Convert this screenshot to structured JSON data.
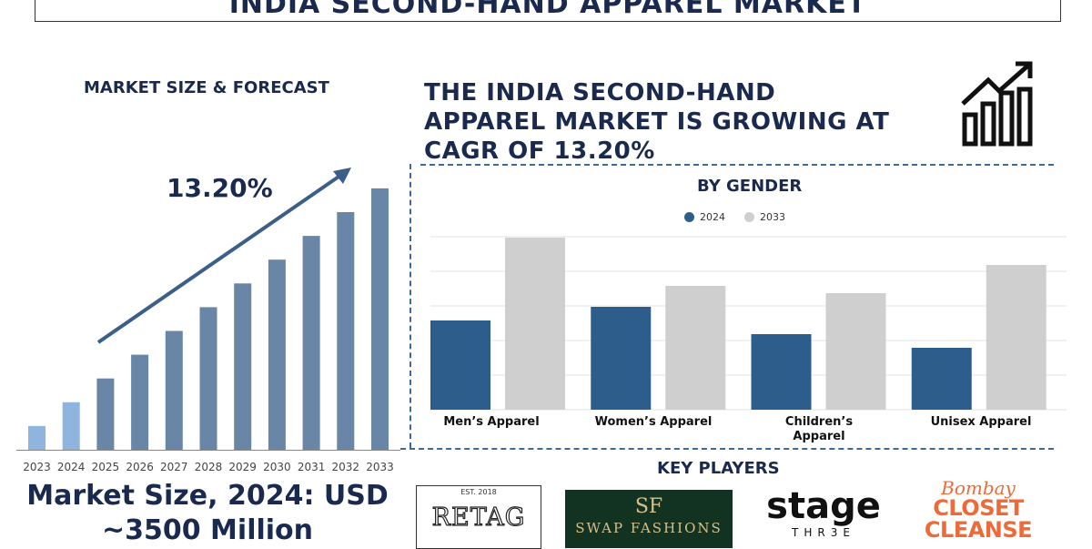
{
  "header": {
    "title": "INDIA SECOND-HAND APPAREL MARKET"
  },
  "left_panel": {
    "heading": "MARKET SIZE & FORECAST",
    "cagr_label": "13.20%",
    "market_size_text": "Market Size, 2024: USD ~3500 Million"
  },
  "right_panel": {
    "growth_text": "THE INDIA SECOND-HAND APPAREL MARKET IS GROWING AT CAGR OF 13.20%",
    "growth_icon": "bar-growth-icon"
  },
  "key_players": {
    "heading": "KEY PLAYERS",
    "logos": [
      {
        "name": "RETAG",
        "tagline": "EST. 2018"
      },
      {
        "name": "SWAP FASHIONS",
        "monogram": "SF"
      },
      {
        "name": "stage",
        "subtitle": "THR3E"
      },
      {
        "name": "CLOSET CLEANSE",
        "script": "Bombay"
      }
    ]
  },
  "colors": {
    "navy": "#1a2a4f",
    "bar_light": "#8fb4dd",
    "bar_dark": "#6a86a7",
    "series_2024": "#2d5d8a",
    "series_2033": "#cfcfcf",
    "swap_bg": "#133322",
    "bombay_orange": "#ee6a36"
  },
  "chart_data": [
    {
      "type": "bar",
      "categories": [
        "2023",
        "2024",
        "2025",
        "2026",
        "2027",
        "2028",
        "2029",
        "2030",
        "2031",
        "2032",
        "2033"
      ],
      "values": [
        0.09,
        0.18,
        0.27,
        0.36,
        0.45,
        0.54,
        0.63,
        0.72,
        0.81,
        0.9,
        0.99
      ],
      "title": "MARKET SIZE & FORECAST",
      "annotation": "13.20%",
      "note": "relative bar heights (no y-axis shown)"
    },
    {
      "type": "bar",
      "title": "BY GENDER",
      "categories": [
        "Men’s Apparel",
        "Women’s Apparel",
        "Children’s Apparel",
        "Unisex Apparel"
      ],
      "series": [
        {
          "name": "2024",
          "values": [
            98,
            113,
            83,
            68
          ]
        },
        {
          "name": "2033",
          "values": [
            189,
            136,
            128,
            159
          ]
        }
      ],
      "ylim": [
        0,
        190
      ],
      "grid": true,
      "legend": "top-center"
    }
  ]
}
